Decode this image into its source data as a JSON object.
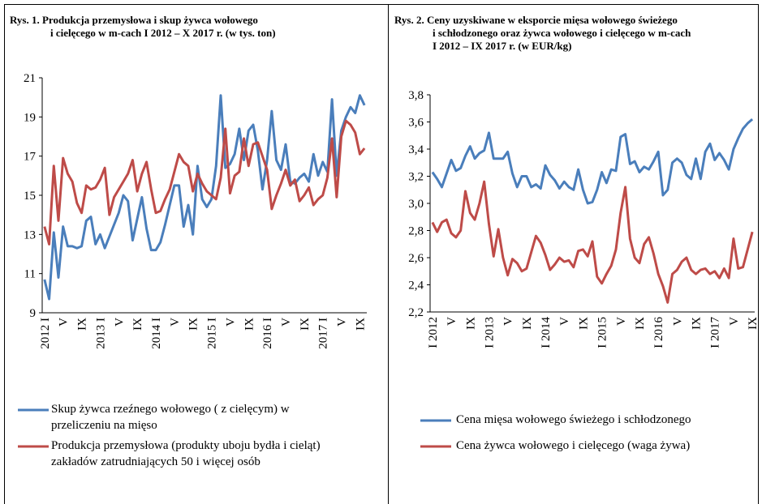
{
  "chart_data": [
    {
      "type": "line",
      "title": "Rys. 1. Produkcja przemysłowa i skup żywca wołowego\ni cielęcego w m-cach I 2012 – X 2017 r. (w tys. ton)",
      "categories": [
        "2012 I",
        null,
        null,
        null,
        "V",
        null,
        null,
        null,
        "IX",
        null,
        null,
        null,
        "2013 I",
        null,
        null,
        null,
        "V",
        null,
        null,
        null,
        "IX",
        null,
        null,
        null,
        "2014 I",
        null,
        null,
        null,
        "V",
        null,
        null,
        null,
        "IX",
        null,
        null,
        null,
        "2015 I",
        null,
        null,
        null,
        "V",
        null,
        null,
        null,
        "IX",
        null,
        null,
        null,
        "2016 I",
        null,
        null,
        null,
        "V",
        null,
        null,
        null,
        "IX",
        null,
        null,
        null,
        "2017 I",
        null,
        null,
        null,
        "V",
        null,
        null,
        null,
        "IX",
        null
      ],
      "series": [
        {
          "name": "Skup żywca rzeźnego wołowego ( z cielęcym) w\nprzeliczeniu na mięso",
          "color": "#4a7ebb",
          "values": [
            10.7,
            9.7,
            13.1,
            10.8,
            13.4,
            12.4,
            12.4,
            12.3,
            12.4,
            13.7,
            13.9,
            12.5,
            13.0,
            12.3,
            12.9,
            13.5,
            14.1,
            15.0,
            14.7,
            12.7,
            13.8,
            14.9,
            13.3,
            12.2,
            12.2,
            12.6,
            13.5,
            14.5,
            15.5,
            15.5,
            13.4,
            14.5,
            13.0,
            16.5,
            14.8,
            14.4,
            14.8,
            16.5,
            20.1,
            16.4,
            16.6,
            17.1,
            18.4,
            16.8,
            18.3,
            18.6,
            17.3,
            15.3,
            16.8,
            19.3,
            16.8,
            16.3,
            17.6,
            15.7,
            15.6,
            15.9,
            16.1,
            15.7,
            17.1,
            16.0,
            16.7,
            16.2,
            19.9,
            16.0,
            18.3,
            19.0,
            19.5,
            19.2,
            20.1,
            19.6
          ]
        },
        {
          "name": "Produkcja przemysłowa (produkty uboju bydła i cieląt)\nzakładów zatrudniających 50 i więcej osób",
          "color": "#be4b48",
          "values": [
            13.4,
            12.5,
            16.5,
            13.7,
            16.9,
            16.1,
            15.7,
            14.6,
            14.1,
            15.5,
            15.3,
            15.4,
            15.8,
            16.4,
            14.0,
            14.9,
            15.3,
            15.7,
            16.1,
            16.8,
            15.2,
            16.1,
            16.7,
            15.3,
            14.1,
            14.2,
            14.8,
            15.3,
            16.2,
            17.1,
            16.7,
            16.5,
            15.2,
            16.1,
            15.6,
            15.2,
            15.0,
            14.8,
            15.9,
            18.4,
            15.1,
            16.0,
            16.2,
            17.9,
            16.5,
            17.6,
            17.7,
            17.0,
            16.3,
            14.3,
            15.0,
            15.6,
            16.3,
            15.5,
            15.8,
            14.7,
            15.0,
            15.4,
            14.5,
            14.8,
            15.0,
            15.9,
            17.9,
            14.9,
            18.0,
            18.8,
            18.6,
            18.2,
            17.1,
            17.4
          ]
        }
      ],
      "ylim": [
        9,
        21
      ],
      "yticks": [
        9,
        11,
        13,
        15,
        17,
        19,
        21
      ],
      "grid": false
    },
    {
      "type": "line",
      "title": "Rys. 2. Ceny uzyskiwane w eksporcie mięsa wołowego świeżego\ni schłodzonego oraz żywca wołowego i cielęcego w m-cach\nI 2012 – IX 2017 r. (w EUR/kg)",
      "categories": [
        "I 2012",
        null,
        null,
        null,
        "V",
        null,
        null,
        null,
        "IX",
        null,
        null,
        null,
        "I 2013",
        null,
        null,
        null,
        "V",
        null,
        null,
        null,
        "IX",
        null,
        null,
        null,
        "I 2014",
        null,
        null,
        null,
        "V",
        null,
        null,
        null,
        "IX",
        null,
        null,
        null,
        "I 2015",
        null,
        null,
        null,
        "V",
        null,
        null,
        null,
        "IX",
        null,
        null,
        null,
        "I 2016",
        null,
        null,
        null,
        "V",
        null,
        null,
        null,
        "IX",
        null,
        null,
        null,
        "I 2017",
        null,
        null,
        null,
        "V",
        null,
        null,
        null,
        "IX"
      ],
      "series": [
        {
          "name": "Cena mięsa wołowego świeżego i schłodzonego",
          "color": "#4a7ebb",
          "values": [
            3.23,
            3.18,
            3.12,
            3.22,
            3.32,
            3.24,
            3.26,
            3.35,
            3.42,
            3.33,
            3.37,
            3.39,
            3.52,
            3.33,
            3.33,
            3.33,
            3.38,
            3.22,
            3.12,
            3.2,
            3.2,
            3.12,
            3.14,
            3.11,
            3.28,
            3.21,
            3.17,
            3.11,
            3.16,
            3.12,
            3.1,
            3.25,
            3.1,
            3.0,
            3.01,
            3.1,
            3.23,
            3.15,
            3.25,
            3.24,
            3.49,
            3.51,
            3.29,
            3.31,
            3.23,
            3.27,
            3.25,
            3.31,
            3.38,
            3.06,
            3.1,
            3.3,
            3.33,
            3.3,
            3.21,
            3.18,
            3.33,
            3.18,
            3.38,
            3.44,
            3.32,
            3.37,
            3.32,
            3.25,
            3.4,
            3.48,
            3.55,
            3.59,
            3.62
          ]
        },
        {
          "name": "Cena żywca wołowego i cielęcego (waga żywa)",
          "color": "#be4b48",
          "values": [
            2.86,
            2.79,
            2.86,
            2.88,
            2.78,
            2.75,
            2.8,
            3.09,
            2.93,
            2.88,
            3.0,
            3.16,
            2.85,
            2.61,
            2.81,
            2.6,
            2.47,
            2.59,
            2.56,
            2.5,
            2.52,
            2.64,
            2.76,
            2.71,
            2.62,
            2.51,
            2.55,
            2.6,
            2.57,
            2.58,
            2.53,
            2.65,
            2.66,
            2.61,
            2.72,
            2.46,
            2.41,
            2.48,
            2.54,
            2.66,
            2.93,
            3.12,
            2.74,
            2.6,
            2.56,
            2.7,
            2.75,
            2.63,
            2.48,
            2.39,
            2.27,
            2.48,
            2.51,
            2.57,
            2.6,
            2.51,
            2.48,
            2.51,
            2.52,
            2.48,
            2.5,
            2.45,
            2.52,
            2.45,
            2.74,
            2.52,
            2.53,
            2.66,
            2.79
          ]
        }
      ],
      "ylim": [
        2.2,
        3.8
      ],
      "yticks": [
        {
          "value": 2.2,
          "label": "2,2"
        },
        {
          "value": 2.4,
          "label": "2,4"
        },
        {
          "value": 2.6,
          "label": "2,6"
        },
        {
          "value": 2.8,
          "label": "2,8"
        },
        {
          "value": 3.0,
          "label": "3,0"
        },
        {
          "value": 3.2,
          "label": "3,2"
        },
        {
          "value": 3.4,
          "label": "3,4"
        },
        {
          "value": 3.6,
          "label": "3,6"
        },
        {
          "value": 3.8,
          "label": "3,8"
        }
      ],
      "grid": false
    }
  ]
}
